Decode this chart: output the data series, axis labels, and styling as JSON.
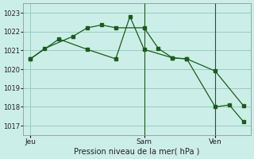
{
  "xlabel": "Pression niveau de la mer( hPa )",
  "bg_color": "#cceee8",
  "line_color": "#1a5c1a",
  "grid_color": "#99ccbb",
  "ylim": [
    1016.5,
    1023.5
  ],
  "yticks": [
    1017,
    1018,
    1019,
    1020,
    1021,
    1022,
    1023
  ],
  "xtick_labels": [
    "Jeu",
    "Sam",
    "Ven"
  ],
  "xtick_pos": [
    0,
    8,
    13
  ],
  "vlines_x": [
    8,
    13
  ],
  "line1_x": [
    0,
    1,
    3,
    4,
    5,
    6,
    8,
    9,
    10,
    11,
    13,
    15
  ],
  "line1_y": [
    1020.55,
    1021.1,
    1021.75,
    1022.2,
    1022.35,
    1022.2,
    1022.2,
    1021.1,
    1020.6,
    1020.55,
    1019.9,
    1018.05
  ],
  "line2_x": [
    0,
    2,
    4,
    6,
    7,
    8,
    10,
    11,
    13,
    14,
    15
  ],
  "line2_y": [
    1020.55,
    1021.6,
    1021.05,
    1020.55,
    1022.8,
    1021.05,
    1020.6,
    1020.55,
    1018.0,
    1018.1,
    1017.2
  ]
}
